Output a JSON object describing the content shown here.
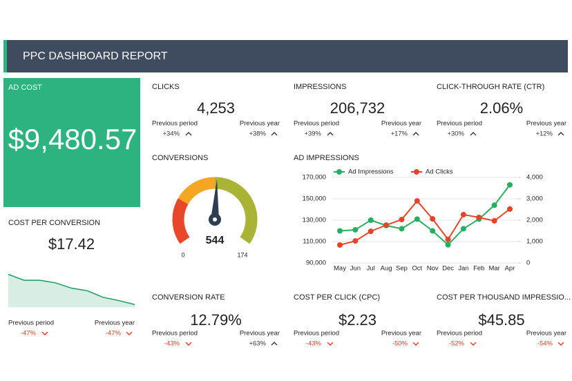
{
  "header": {
    "title": "PPC DASHBOARD REPORT"
  },
  "ad_cost": {
    "title": "AD COST",
    "value": "$9,480.57"
  },
  "kpis": [
    {
      "title": "CLICKS",
      "value": "4,253",
      "period_label": "Previous period",
      "period_change": "+34%",
      "year_label": "Previous year",
      "year_change": "+38%"
    },
    {
      "title": "IMPRESSIONS",
      "value": "206,732",
      "period_label": "Previous period",
      "period_change": "+39%",
      "year_label": "Previous year",
      "year_change": "+17%"
    },
    {
      "title": "CLICK-THROUGH RATE (CTR)",
      "value": "2.06%",
      "period_label": "Previous period",
      "period_change": "+30%",
      "year_label": "Previous year",
      "year_change": "+12%"
    },
    {
      "title": "COST PER CONVERSION",
      "value": "$17.42",
      "period_label": "Previous period",
      "period_change": "-47%",
      "year_label": "Previous year",
      "year_change": "-47%"
    },
    {
      "title": "CONVERSION RATE",
      "value": "12.79%",
      "period_label": "Previous period",
      "period_change": "-43%",
      "year_label": "Previous year",
      "year_change": "+63%"
    },
    {
      "title": "COST PER CLICK (CPC)",
      "value": "$2.23",
      "period_label": "Previous period",
      "period_change": "-43%",
      "year_label": "Previous year",
      "year_change": "-50%"
    },
    {
      "title": "COST PER THOUSAND IMPRESSIO...",
      "value": "$45.85",
      "period_label": "Previous period",
      "period_change": "-52%",
      "year_label": "Previous year",
      "year_change": "-54%"
    }
  ],
  "chart_data": [
    {
      "type": "gauge",
      "title": "CONVERSIONS",
      "value": 544,
      "min": 0,
      "max": 174,
      "colors": [
        "#e8472a",
        "#f5a623",
        "#a9b436"
      ]
    },
    {
      "type": "line",
      "title": "AD IMPRESSIONS",
      "categories": [
        "May",
        "Jun",
        "Jul",
        "Aug",
        "Sep",
        "Oct",
        "Nov",
        "Dec",
        "Jan",
        "Feb",
        "Mar",
        "Apr"
      ],
      "series": [
        {
          "name": "Ad Impressions",
          "color": "#27ae60",
          "values": [
            120000,
            121000,
            130000,
            125000,
            122000,
            131000,
            120000,
            107000,
            122000,
            131000,
            144000,
            163000
          ]
        },
        {
          "name": "Ad Clicks",
          "color": "#e8432a",
          "axis": "y2",
          "values": [
            840,
            1030,
            1480,
            1770,
            2030,
            2900,
            2060,
            1100,
            2260,
            2130,
            1970,
            2520
          ]
        }
      ],
      "ylim": [
        90000,
        170000
      ],
      "yticks": [
        {
          "value": 170000,
          "label": "170,000"
        },
        {
          "value": 150000,
          "label": "150,000"
        },
        {
          "value": 130000,
          "label": "130,000"
        },
        {
          "value": 110000,
          "label": "110,000"
        },
        {
          "value": 90000,
          "label": "90,000"
        }
      ],
      "y2lim": [
        0,
        4000
      ],
      "y2ticks": [
        {
          "value": 4000,
          "label": "4,000"
        },
        {
          "value": 3000,
          "label": "3,000"
        },
        {
          "value": 2000,
          "label": "2,000"
        },
        {
          "value": 1000,
          "label": "1,000"
        },
        0
      ],
      "grid": true
    },
    {
      "type": "area",
      "values": [
        50,
        41,
        41,
        37,
        29,
        25,
        15,
        10,
        4
      ],
      "ylim": [
        0,
        60
      ],
      "color": "#27a06a"
    }
  ]
}
